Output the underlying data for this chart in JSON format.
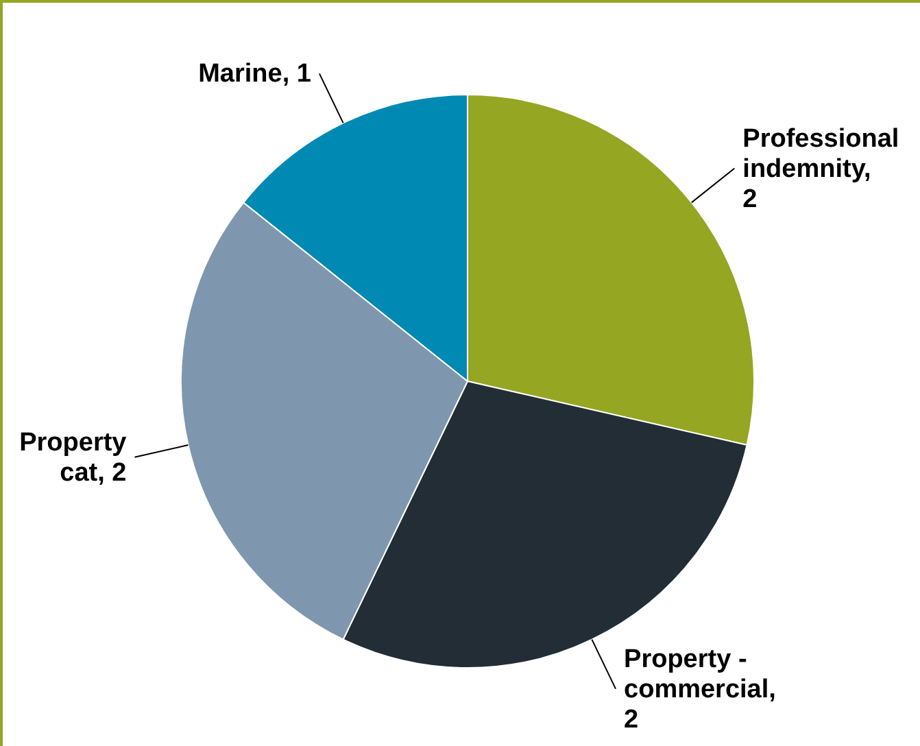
{
  "chart_data": {
    "type": "pie",
    "categories": [
      "Professional indemnity, 2",
      "Property - commercial, 2",
      "Property cat, 2",
      "Marine, 1"
    ],
    "values": [
      2,
      2,
      2,
      1
    ],
    "colors": [
      "#95a623",
      "#222d36",
      "#7f97ae",
      "#0089b3"
    ]
  }
}
